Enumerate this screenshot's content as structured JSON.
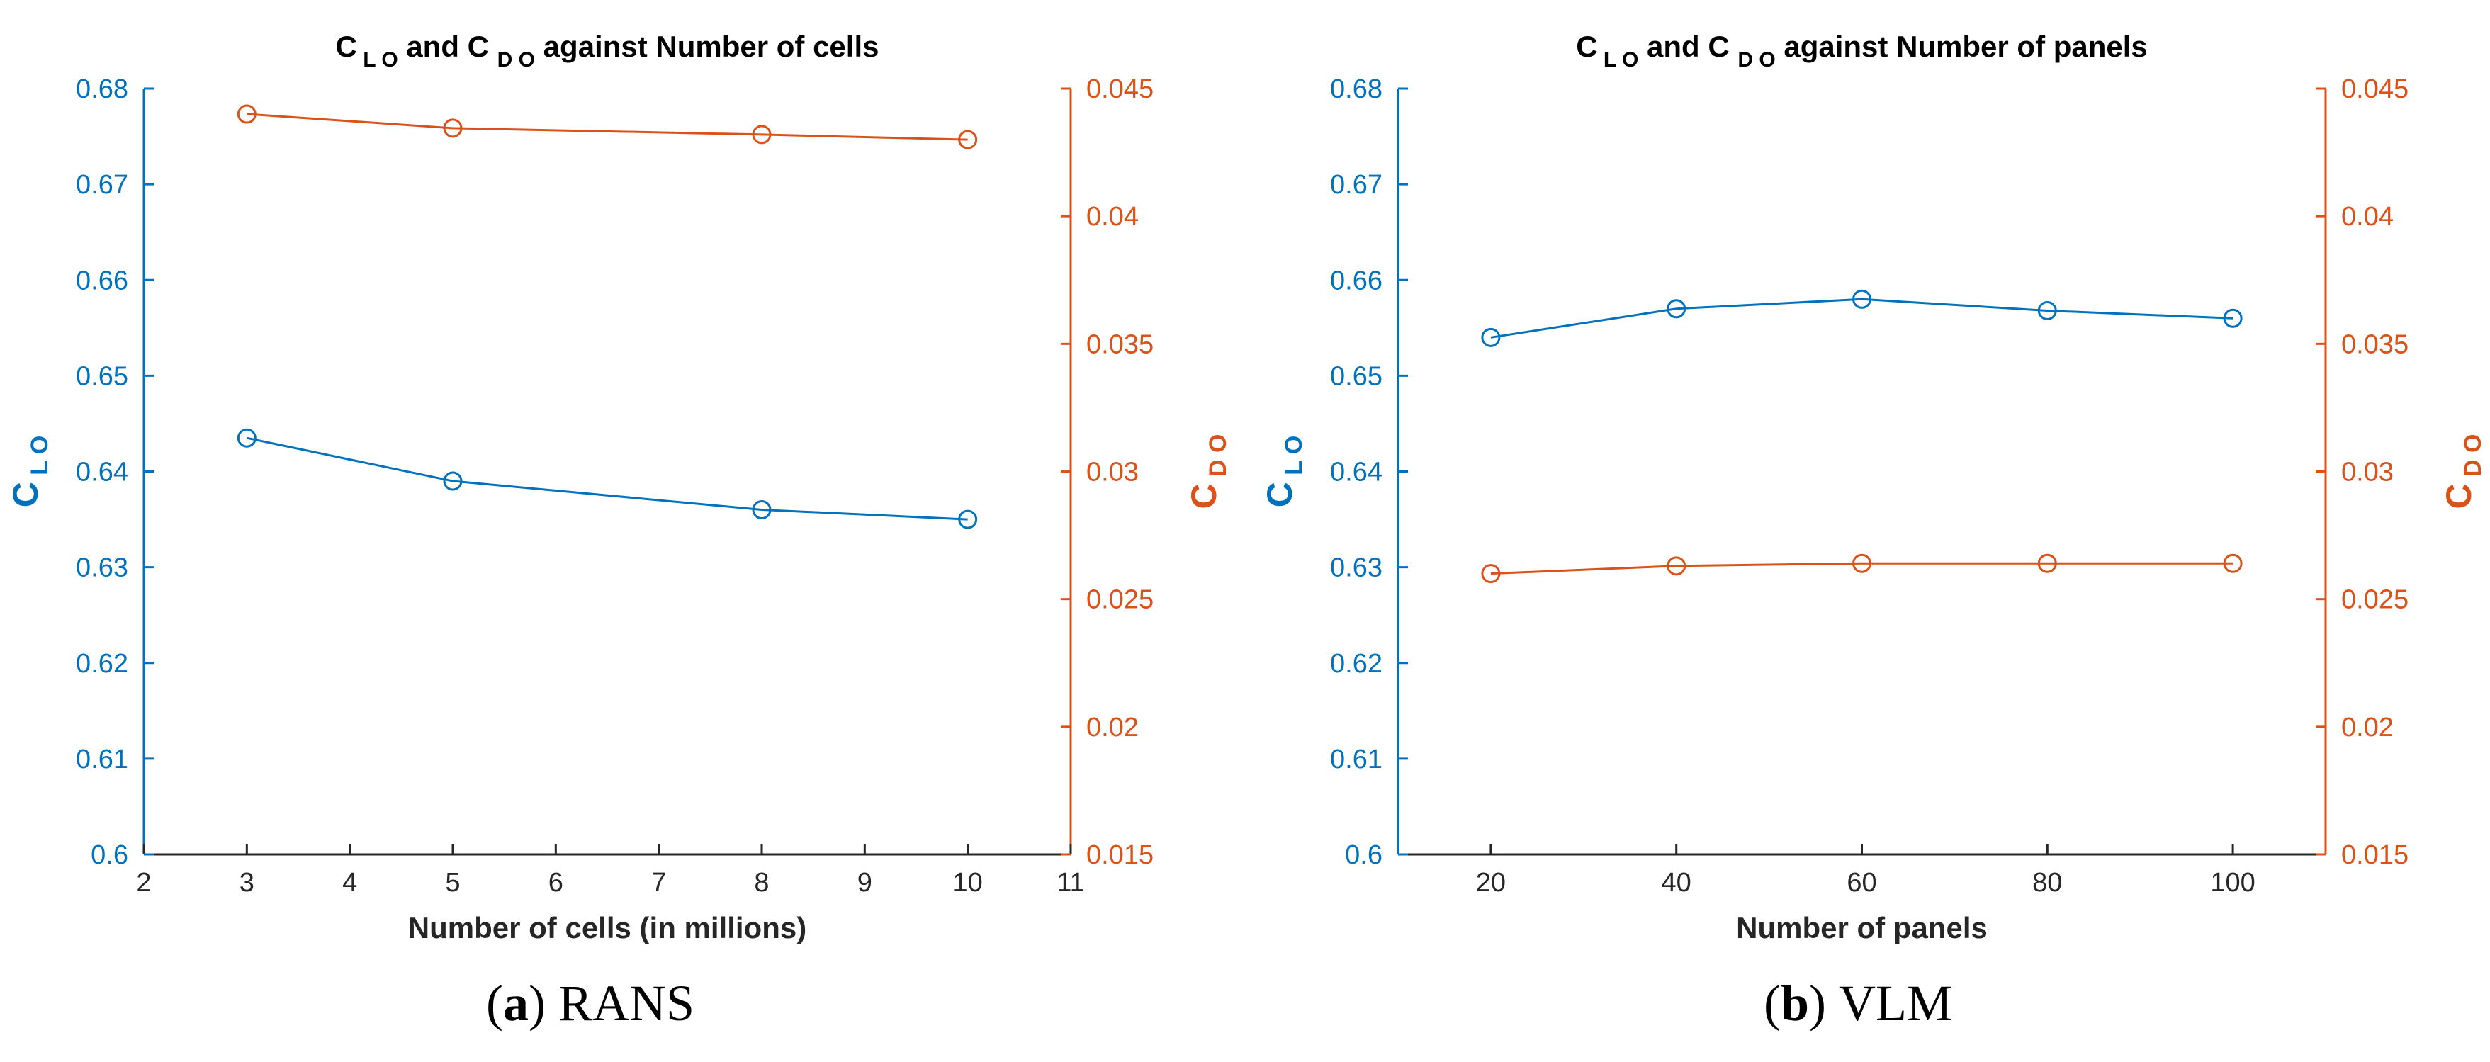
{
  "figure": {
    "colors": {
      "left_axis": "#0072BD",
      "right_axis": "#D95319",
      "text": "#262626",
      "axis": "#262626"
    },
    "captions": [
      {
        "letter": "a",
        "text": "RANS"
      },
      {
        "letter": "b",
        "text": "VLM"
      }
    ]
  },
  "chart_data": [
    {
      "type": "line",
      "title": {
        "prefix": "C",
        "sub1": "LO",
        "mid": " and C ",
        "sub2": "DO",
        "suffix": " against Number of cells"
      },
      "xlabel": "Number of cells (in millions)",
      "ylabel": {
        "main": "C",
        "sub": "LO"
      },
      "y2label": {
        "main": "C",
        "sub": "DO"
      },
      "xlim": [
        2,
        11
      ],
      "xticks": [
        2,
        3,
        4,
        5,
        6,
        7,
        8,
        9,
        10,
        11
      ],
      "ylim": [
        0.6,
        0.68
      ],
      "yticks": [
        "0.6",
        "0.61",
        "0.62",
        "0.63",
        "0.64",
        "0.65",
        "0.66",
        "0.67",
        "0.68"
      ],
      "y2lim": [
        0.015,
        0.045
      ],
      "y2ticks": [
        "0.015",
        "0.02",
        "0.025",
        "0.03",
        "0.035",
        "0.04",
        "0.045"
      ],
      "grid": false,
      "series": [
        {
          "axis": "left",
          "marker": "circle",
          "x": [
            3,
            5,
            8,
            10
          ],
          "values": [
            0.6435,
            0.639,
            0.636,
            0.635
          ]
        },
        {
          "axis": "right",
          "marker": "circle",
          "x": [
            3,
            5,
            8,
            10
          ],
          "values": [
            0.044,
            0.04345,
            0.0432,
            0.043
          ]
        }
      ]
    },
    {
      "type": "line",
      "title": {
        "prefix": "C",
        "sub1": "LO",
        "mid": " and C ",
        "sub2": "DO",
        "suffix": " against Number of panels"
      },
      "xlabel": "Number of panels",
      "ylabel": {
        "main": "C",
        "sub": "LO"
      },
      "y2label": {
        "main": "C",
        "sub": "DO"
      },
      "xlim": [
        10,
        110
      ],
      "xticks": [
        20,
        40,
        60,
        80,
        100
      ],
      "ylim": [
        0.6,
        0.68
      ],
      "yticks": [
        "0.6",
        "0.61",
        "0.62",
        "0.63",
        "0.64",
        "0.65",
        "0.66",
        "0.67",
        "0.68"
      ],
      "y2lim": [
        0.015,
        0.045
      ],
      "y2ticks": [
        "0.015",
        "0.02",
        "0.025",
        "0.03",
        "0.035",
        "0.04",
        "0.045"
      ],
      "grid": false,
      "series": [
        {
          "axis": "left",
          "marker": "circle",
          "x": [
            20,
            40,
            60,
            80,
            100
          ],
          "values": [
            0.654,
            0.657,
            0.658,
            0.6568,
            0.656
          ]
        },
        {
          "axis": "right",
          "marker": "circle",
          "x": [
            20,
            40,
            60,
            80,
            100
          ],
          "values": [
            0.026,
            0.0263,
            0.0264,
            0.0264,
            0.0264
          ]
        }
      ]
    }
  ]
}
